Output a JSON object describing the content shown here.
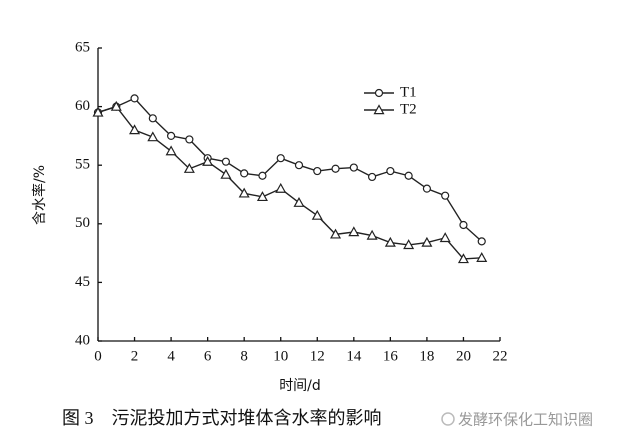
{
  "chart_data": {
    "type": "line",
    "xlabel": "时间/d",
    "ylabel": "含水率/%",
    "caption": "图 3　污泥投加方式对堆体含水率的影响",
    "watermark": "发酵环保化工知识圈",
    "x": [
      0,
      1,
      2,
      3,
      4,
      5,
      6,
      7,
      8,
      9,
      10,
      11,
      12,
      13,
      14,
      15,
      16,
      17,
      18,
      19,
      20,
      21
    ],
    "series": [
      {
        "name": "T1",
        "color": "#222222",
        "marker": "circle",
        "values": [
          59.5,
          60,
          60.7,
          59,
          57.5,
          57.2,
          55.6,
          55.3,
          54.3,
          54.1,
          55.6,
          55,
          54.5,
          54.7,
          54.8,
          54,
          54.5,
          54.1,
          53,
          52.4,
          49.9,
          48.5
        ]
      },
      {
        "name": "T2",
        "color": "#222222",
        "marker": "triangle",
        "values": [
          59.5,
          60,
          58,
          57.4,
          56.2,
          54.7,
          55.3,
          54.2,
          52.6,
          52.3,
          53,
          51.8,
          50.7,
          49.1,
          49.3,
          49,
          48.4,
          48.2,
          48.4,
          48.8,
          47,
          47.1
        ]
      }
    ],
    "xlim": [
      0,
      22
    ],
    "xticks": [
      0,
      2,
      4,
      6,
      8,
      10,
      12,
      14,
      16,
      18,
      20,
      22
    ],
    "ylim": [
      40,
      65
    ],
    "yticks": [
      40,
      45,
      50,
      55,
      60,
      65
    ],
    "legend": "upper-right"
  }
}
